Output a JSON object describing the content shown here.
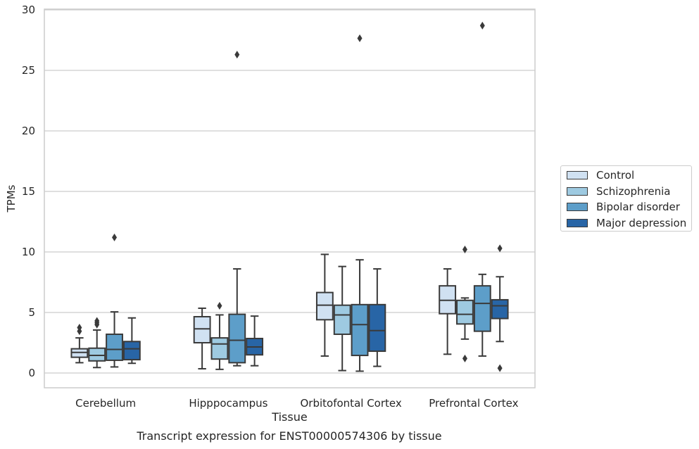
{
  "chart_data": {
    "type": "box",
    "title": "",
    "caption": "Transcript expression for ENST00000574306 by tissue",
    "xlabel": "Tissue",
    "ylabel": "TPMs",
    "ylim": [
      -1.3,
      30.2
    ],
    "yticks": [
      0,
      5,
      10,
      15,
      20,
      25,
      30
    ],
    "grid": "horizontal",
    "legend_position": "right",
    "categories": [
      "Cerebellum",
      "Hipppocampus",
      "Orbitofontal Cortex",
      "Prefrontal Cortex"
    ],
    "series": [
      {
        "name": "Control",
        "color": "#d0e1f2",
        "boxes": [
          {
            "whislo": 0.85,
            "q1": 1.3,
            "med": 1.7,
            "q3": 2.0,
            "whishi": 2.9,
            "fliers": [
              3.45,
              3.75
            ]
          },
          {
            "whislo": 0.35,
            "q1": 2.5,
            "med": 3.65,
            "q3": 4.65,
            "whishi": 5.35,
            "fliers": []
          },
          {
            "whislo": 1.4,
            "q1": 4.4,
            "med": 5.6,
            "q3": 6.65,
            "whishi": 9.8,
            "fliers": []
          },
          {
            "whislo": 1.55,
            "q1": 4.9,
            "med": 6.0,
            "q3": 7.2,
            "whishi": 8.6,
            "fliers": []
          }
        ]
      },
      {
        "name": "Schizophrenia",
        "color": "#9ecae1",
        "boxes": [
          {
            "whislo": 0.45,
            "q1": 1.0,
            "med": 1.45,
            "q3": 2.05,
            "whishi": 3.55,
            "fliers": [
              4.0,
              4.15,
              4.3
            ]
          },
          {
            "whislo": 0.3,
            "q1": 1.15,
            "med": 2.4,
            "q3": 2.9,
            "whishi": 4.8,
            "fliers": [
              5.55
            ]
          },
          {
            "whislo": 0.2,
            "q1": 3.2,
            "med": 4.8,
            "q3": 5.6,
            "whishi": 8.8,
            "fliers": []
          },
          {
            "whislo": 2.8,
            "q1": 4.05,
            "med": 4.85,
            "q3": 6.0,
            "whishi": 6.2,
            "fliers": [
              1.2,
              10.2
            ]
          }
        ]
      },
      {
        "name": "Bipolar disorder",
        "color": "#5d9ec9",
        "boxes": [
          {
            "whislo": 0.5,
            "q1": 1.05,
            "med": 1.95,
            "q3": 3.2,
            "whishi": 5.05,
            "fliers": [
              11.2
            ]
          },
          {
            "whislo": 0.6,
            "q1": 0.85,
            "med": 2.7,
            "q3": 4.85,
            "whishi": 8.6,
            "fliers": [
              26.3
            ]
          },
          {
            "whislo": 0.15,
            "q1": 1.45,
            "med": 4.0,
            "q3": 5.65,
            "whishi": 9.35,
            "fliers": [
              27.65
            ]
          },
          {
            "whislo": 1.4,
            "q1": 3.45,
            "med": 5.75,
            "q3": 7.2,
            "whishi": 8.15,
            "fliers": [
              28.7
            ]
          }
        ]
      },
      {
        "name": "Major depression",
        "color": "#2865a6",
        "boxes": [
          {
            "whislo": 0.8,
            "q1": 1.1,
            "med": 2.0,
            "q3": 2.6,
            "whishi": 4.55,
            "fliers": []
          },
          {
            "whislo": 0.6,
            "q1": 1.5,
            "med": 2.15,
            "q3": 2.85,
            "whishi": 4.7,
            "fliers": []
          },
          {
            "whislo": 0.55,
            "q1": 1.8,
            "med": 3.5,
            "q3": 5.65,
            "whishi": 8.6,
            "fliers": []
          },
          {
            "whislo": 2.6,
            "q1": 4.5,
            "med": 5.55,
            "q3": 6.05,
            "whishi": 7.95,
            "fliers": [
              0.4,
              10.3
            ]
          }
        ]
      }
    ]
  }
}
